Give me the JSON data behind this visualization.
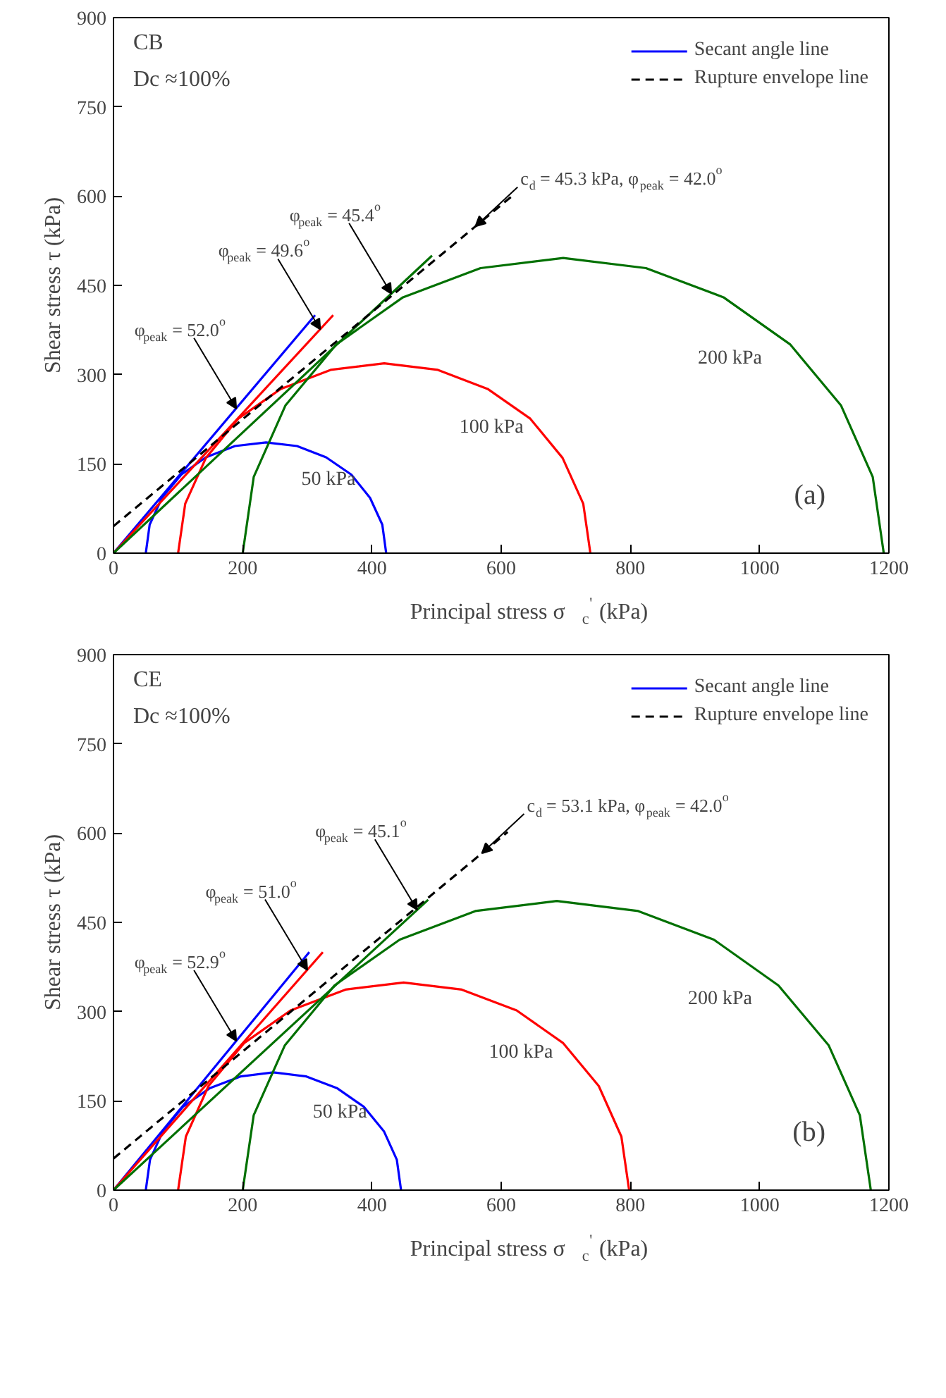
{
  "chart_data": [
    {
      "type": "line",
      "title": "CB",
      "subtitle": "Dc ≈100%",
      "xlabel": "Principal stress σ$_{c}$$^{'}$ (kPa)",
      "ylabel": "Shear stress τ (kPa)",
      "xlim": [
        0,
        1200
      ],
      "ylim": [
        0,
        900
      ],
      "xticks": [
        0,
        200,
        400,
        600,
        800,
        1000,
        1200
      ],
      "yticks": [
        0,
        150,
        300,
        450,
        600,
        750,
        900
      ],
      "grid": false,
      "legend": "top right",
      "series": [
        {
          "name": "50 kPa",
          "color": "#0000ff",
          "x": [
            50,
            56,
            75,
            105,
            143,
            188,
            236,
            284,
            329,
            368,
            397,
            416,
            422
          ],
          "values": [
            0,
            48,
            93,
            132,
            161,
            180,
            186,
            180,
            161,
            132,
            93,
            48,
            0
          ]
        },
        {
          "name": "100 kPa",
          "color": "#ff0000",
          "x": [
            100,
            111,
            143,
            193,
            259,
            336,
            419,
            502,
            579,
            645,
            695,
            727,
            738
          ],
          "values": [
            0,
            83,
            160,
            226,
            276,
            308,
            319,
            308,
            276,
            226,
            160,
            83,
            0
          ]
        },
        {
          "name": "200 kPa",
          "color": "#007000",
          "x": [
            200,
            217,
            266,
            345,
            448,
            568,
            696,
            824,
            944,
            1047,
            1126,
            1175,
            1192
          ],
          "values": [
            0,
            128,
            248,
            351,
            430,
            479,
            496,
            479,
            430,
            351,
            248,
            128,
            0
          ]
        },
        {
          "name": "Secant angle line",
          "color": "#0000ff",
          "line_style": "solid",
          "x": [
            0,
            312
          ],
          "values": [
            0,
            400
          ]
        },
        {
          "color": "#ff0000",
          "x": [
            0,
            340
          ],
          "values": [
            0,
            400
          ]
        },
        {
          "color": "#007000",
          "x": [
            0,
            493
          ],
          "values": [
            0,
            500
          ]
        },
        {
          "name": "Rupture envelope line",
          "color": "#000000",
          "line_style": "dashed",
          "x": [
            0,
            620
          ],
          "values": [
            45.3,
            603
          ]
        }
      ],
      "annotations": [
        {
          "text": "φ$_{peak}$ = 52.0$^{o}$",
          "x": 190,
          "y": 243
        },
        {
          "text": "φ$_{peak}$ = 49.6$^{o}$",
          "x": 320,
          "y": 376
        },
        {
          "text": "φ$_{peak}$ = 45.4$^{o}$",
          "x": 430,
          "y": 436
        },
        {
          "text": "c$_{d}$ = 45.3 kPa, φ$_{peak}$ = 42.0$^{o}$",
          "x": 560,
          "y": 549
        },
        "(a)"
      ]
    },
    {
      "type": "line",
      "title": "CE",
      "subtitle": "Dc ≈100%",
      "xlabel": "Principal stress σ$_{c}$$^{'}$ (kPa)",
      "ylabel": "Shear stress τ (kPa)",
      "xlim": [
        0,
        1200
      ],
      "ylim": [
        0,
        900
      ],
      "xticks": [
        0,
        200,
        400,
        600,
        800,
        1000,
        1200
      ],
      "yticks": [
        0,
        150,
        300,
        450,
        600,
        750,
        900
      ],
      "grid": false,
      "legend": "top right",
      "series": [
        {
          "name": "50 kPa",
          "color": "#0000ff",
          "x": [
            50,
            56.5,
            76.5,
            107.5,
            148.5,
            196.5,
            247.5,
            298.5,
            346.5,
            387.5,
            418.5,
            438.5,
            445
          ],
          "values": [
            0,
            51,
            99,
            140,
            171,
            191,
            198,
            191,
            171,
            140,
            99,
            51,
            0
          ]
        },
        {
          "name": "100 kPa",
          "color": "#ff0000",
          "x": [
            100,
            112,
            147,
            202,
            274,
            359,
            449,
            539,
            624,
            696,
            751,
            786,
            798
          ],
          "values": [
            0,
            90,
            175,
            247,
            302,
            337,
            349,
            337,
            302,
            247,
            175,
            90,
            0
          ]
        },
        {
          "name": "200 kPa",
          "color": "#007000",
          "x": [
            200,
            217,
            265,
            342,
            443,
            560,
            686,
            812,
            929,
            1029,
            1107,
            1155,
            1172
          ],
          "values": [
            0,
            126,
            243,
            344,
            421,
            469,
            486,
            469,
            421,
            344,
            243,
            126,
            0
          ]
        },
        {
          "name": "Secant angle line",
          "color": "#0000ff",
          "line_style": "solid",
          "x": [
            0,
            303
          ],
          "values": [
            0,
            400
          ]
        },
        {
          "color": "#ff0000",
          "x": [
            0,
            324
          ],
          "values": [
            0,
            400
          ]
        },
        {
          "color": "#007000",
          "x": [
            0,
            487
          ],
          "values": [
            0,
            488
          ]
        },
        {
          "name": "Rupture envelope line",
          "color": "#000000",
          "line_style": "dashed",
          "x": [
            0,
            610
          ],
          "values": [
            53.1,
            602
          ]
        }
      ],
      "annotations": [
        {
          "text": "φ$_{peak}$ = 52.9$^{o}$",
          "x": 190,
          "y": 251
        },
        {
          "text": "φ$_{peak}$ = 51.0$^{o}$",
          "x": 300,
          "y": 370
        },
        {
          "text": "φ$_{peak}$ = 45.1$^{o}$",
          "x": 470,
          "y": 471
        },
        {
          "text": "c$_{d}$ = 53.1 kPa, φ$_{peak}$ = 42.0$^{o}$",
          "x": 570,
          "y": 566
        },
        "(b)"
      ]
    }
  ]
}
